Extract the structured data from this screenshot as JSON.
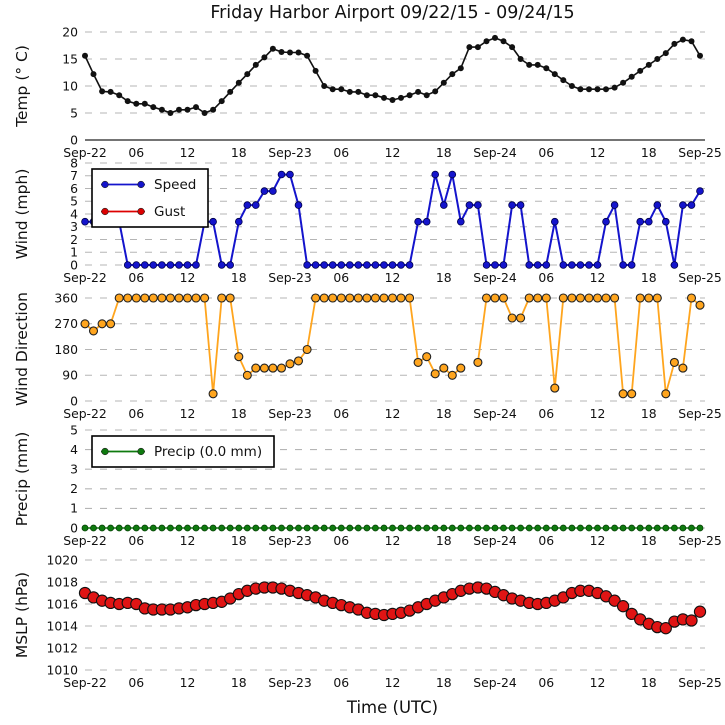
{
  "title": "Friday Harbor Airport 09/22/15 - 09/24/15",
  "xlabel": "Time (UTC)",
  "x_axis": {
    "tick_labels": [
      "Sep-22",
      "06",
      "12",
      "18",
      "Sep-23",
      "06",
      "12",
      "18",
      "Sep-24",
      "06",
      "12",
      "18",
      "Sep-25"
    ],
    "tick_hours": [
      0,
      6,
      12,
      18,
      24,
      30,
      36,
      42,
      48,
      54,
      60,
      66,
      72
    ],
    "range_hours": [
      0,
      72
    ]
  },
  "colors": {
    "temp": "#111111",
    "speed": "#1414cc",
    "gust": "#dd0000",
    "direction": "#ffa51e",
    "precip": "#0e7a0e",
    "mslp": "#e01414",
    "grid": "#b5b5b5",
    "legend_border": "#000000",
    "background": "#ffffff"
  },
  "chart_data": [
    {
      "type": "line",
      "panel": "temperature",
      "ylabel": "Temp (° C)",
      "ylim": [
        0,
        20
      ],
      "yticks": [
        0,
        5,
        10,
        15,
        20
      ],
      "legend": null,
      "series": [
        {
          "name": "Temp",
          "color": "#111111",
          "values": [
            15.6,
            12.2,
            9.0,
            8.9,
            8.3,
            7.2,
            6.7,
            6.7,
            6.1,
            5.6,
            5.0,
            5.6,
            5.6,
            6.1,
            5.0,
            5.6,
            7.2,
            8.9,
            10.6,
            12.2,
            13.9,
            15.3,
            16.9,
            16.3,
            16.2,
            16.2,
            15.6,
            12.8,
            10.0,
            9.4,
            9.4,
            8.9,
            8.9,
            8.3,
            8.3,
            7.8,
            7.4,
            7.8,
            8.3,
            8.9,
            8.3,
            9.0,
            10.6,
            12.2,
            13.3,
            17.2,
            17.2,
            18.3,
            18.9,
            18.3,
            17.2,
            15.0,
            13.9,
            13.9,
            13.3,
            12.2,
            11.1,
            10.0,
            9.4,
            9.4,
            9.4,
            9.4,
            9.7,
            10.6,
            11.7,
            12.8,
            13.9,
            15.0,
            16.1,
            17.8,
            18.6,
            18.3,
            15.6
          ]
        }
      ]
    },
    {
      "type": "line",
      "panel": "wind",
      "ylabel": "Wind (mph)",
      "ylim": [
        0,
        8
      ],
      "yticks": [
        0,
        1,
        2,
        3,
        4,
        5,
        6,
        7,
        8
      ],
      "legend": {
        "position": "upper-left",
        "entries": [
          {
            "label": "Speed",
            "color": "#1414cc"
          },
          {
            "label": "Gust",
            "color": "#dd0000"
          }
        ]
      },
      "series": [
        {
          "name": "Speed",
          "color": "#1414cc",
          "values": [
            3.4,
            3.4,
            3.4,
            3.4,
            3.4,
            0,
            0,
            0,
            0,
            0,
            0,
            0,
            0,
            0,
            3.4,
            3.4,
            0,
            0,
            3.4,
            4.7,
            4.7,
            5.8,
            5.8,
            7.1,
            7.1,
            4.7,
            0,
            0,
            0,
            0,
            0,
            0,
            0,
            0,
            0,
            0,
            0,
            0,
            0,
            3.4,
            3.4,
            7.1,
            4.7,
            7.1,
            3.4,
            4.7,
            4.7,
            0,
            0,
            0,
            4.7,
            4.7,
            0,
            0,
            0,
            3.4,
            0,
            0,
            0,
            0,
            0,
            3.4,
            4.7,
            0,
            0,
            3.4,
            3.4,
            4.7,
            3.4,
            0,
            4.7,
            4.7,
            5.8
          ]
        },
        {
          "name": "Gust",
          "color": "#dd0000",
          "values": []
        }
      ]
    },
    {
      "type": "line",
      "panel": "wind-direction",
      "ylabel": "Wind Direction",
      "ylim": [
        0,
        360
      ],
      "yticks": [
        0,
        90,
        180,
        270,
        360
      ],
      "legend": null,
      "series": [
        {
          "name": "Direction",
          "color": "#ffa51e",
          "values": [
            270,
            245,
            270,
            270,
            360,
            360,
            360,
            360,
            360,
            360,
            360,
            360,
            360,
            360,
            360,
            25,
            360,
            360,
            155,
            90,
            115,
            115,
            115,
            115,
            130,
            140,
            180,
            360,
            360,
            360,
            360,
            360,
            360,
            360,
            360,
            360,
            360,
            360,
            360,
            135,
            155,
            95,
            115,
            90,
            115,
            null,
            135,
            360,
            360,
            360,
            290,
            290,
            360,
            360,
            360,
            45,
            360,
            360,
            360,
            360,
            360,
            360,
            360,
            25,
            25,
            360,
            360,
            360,
            25,
            135,
            115,
            360,
            335
          ]
        }
      ]
    },
    {
      "type": "line",
      "panel": "precipitation",
      "ylabel": "Precip (mm)",
      "ylim": [
        0,
        5
      ],
      "yticks": [
        0,
        1,
        2,
        3,
        4,
        5
      ],
      "legend": {
        "position": "upper-left",
        "entries": [
          {
            "label": "Precip (0.0 mm)",
            "color": "#0e7a0e"
          }
        ]
      },
      "series": [
        {
          "name": "Precip",
          "color": "#0e7a0e",
          "values": [
            0,
            0,
            0,
            0,
            0,
            0,
            0,
            0,
            0,
            0,
            0,
            0,
            0,
            0,
            0,
            0,
            0,
            0,
            0,
            0,
            0,
            0,
            0,
            0,
            0,
            0,
            0,
            0,
            0,
            0,
            0,
            0,
            0,
            0,
            0,
            0,
            0,
            0,
            0,
            0,
            0,
            0,
            0,
            0,
            0,
            0,
            0,
            0,
            0,
            0,
            0,
            0,
            0,
            0,
            0,
            0,
            0,
            0,
            0,
            0,
            0,
            0,
            0,
            0,
            0,
            0,
            0,
            0,
            0,
            0,
            0,
            0,
            0
          ]
        }
      ]
    },
    {
      "type": "line",
      "panel": "mslp",
      "ylabel": "MSLP (hPa)",
      "ylim": [
        1010,
        1020
      ],
      "yticks": [
        1010,
        1012,
        1014,
        1016,
        1018,
        1020
      ],
      "legend": null,
      "series": [
        {
          "name": "MSLP",
          "color": "#e01414",
          "values": [
            1017.0,
            1016.6,
            1016.3,
            1016.1,
            1016.0,
            1016.1,
            1016.0,
            1015.6,
            1015.5,
            1015.5,
            1015.5,
            1015.6,
            1015.7,
            1015.9,
            1016.0,
            1016.1,
            1016.2,
            1016.5,
            1016.9,
            1017.2,
            1017.4,
            1017.5,
            1017.5,
            1017.4,
            1017.2,
            1017.0,
            1016.8,
            1016.6,
            1016.3,
            1016.1,
            1015.9,
            1015.7,
            1015.5,
            1015.2,
            1015.1,
            1015.0,
            1015.1,
            1015.2,
            1015.4,
            1015.7,
            1016.0,
            1016.3,
            1016.6,
            1016.9,
            1017.2,
            1017.4,
            1017.5,
            1017.4,
            1017.1,
            1016.8,
            1016.5,
            1016.3,
            1016.1,
            1016.0,
            1016.1,
            1016.3,
            1016.6,
            1017.0,
            1017.2,
            1017.2,
            1017.0,
            1016.7,
            1016.3,
            1015.8,
            1015.1,
            1014.6,
            1014.2,
            1013.9,
            1013.8,
            1014.4,
            1014.6,
            1014.5,
            1015.3
          ]
        }
      ]
    }
  ]
}
